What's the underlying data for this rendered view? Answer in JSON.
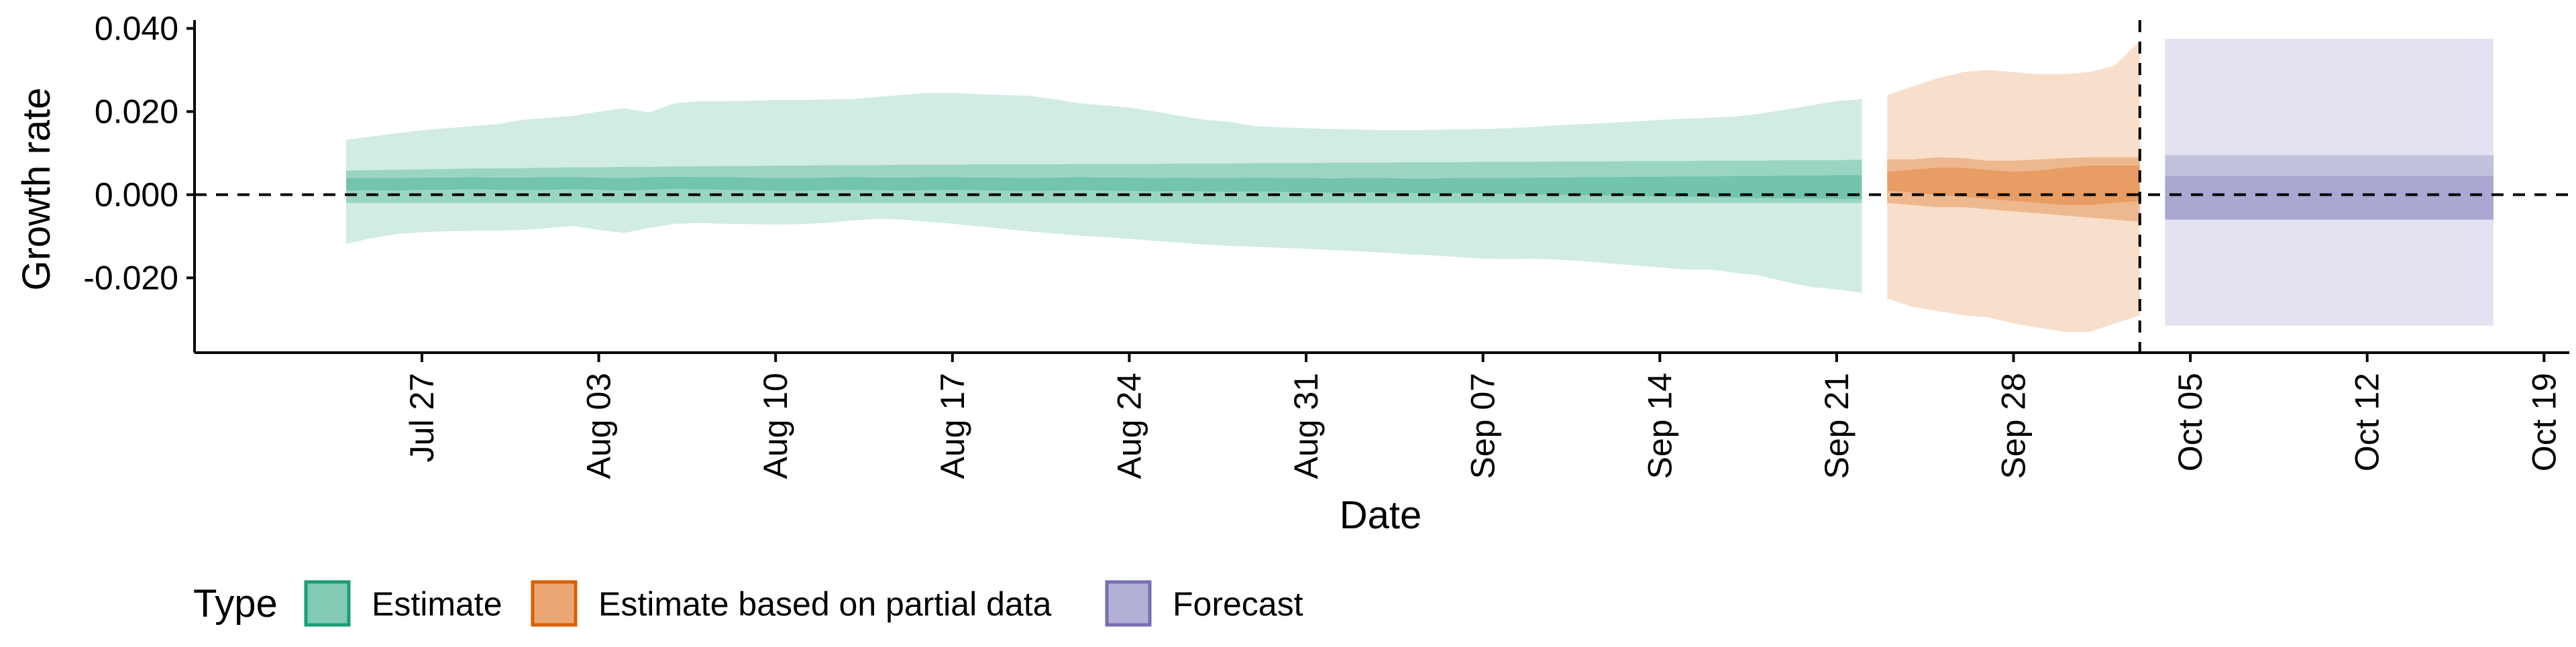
{
  "chart_data": {
    "type": "area",
    "title": "",
    "xlabel": "Date",
    "ylabel": "Growth rate",
    "ylim": [
      -0.038,
      0.042
    ],
    "xlim": [
      "2020-07-18",
      "2020-10-20"
    ],
    "y_ticks": [
      {
        "value": -0.02,
        "label": "-0.020"
      },
      {
        "value": 0.0,
        "label": "0.000"
      },
      {
        "value": 0.02,
        "label": "0.020"
      },
      {
        "value": 0.04,
        "label": "0.040"
      }
    ],
    "x_ticks": [
      {
        "date": "2020-07-27",
        "label": "Jul 27"
      },
      {
        "date": "2020-08-03",
        "label": "Aug 03"
      },
      {
        "date": "2020-08-10",
        "label": "Aug 10"
      },
      {
        "date": "2020-08-17",
        "label": "Aug 17"
      },
      {
        "date": "2020-08-24",
        "label": "Aug 24"
      },
      {
        "date": "2020-08-31",
        "label": "Aug 31"
      },
      {
        "date": "2020-09-07",
        "label": "Sep 07"
      },
      {
        "date": "2020-09-14",
        "label": "Sep 14"
      },
      {
        "date": "2020-09-21",
        "label": "Sep 21"
      },
      {
        "date": "2020-09-28",
        "label": "Sep 28"
      },
      {
        "date": "2020-10-05",
        "label": "Oct 05"
      },
      {
        "date": "2020-10-12",
        "label": "Oct 12"
      },
      {
        "date": "2020-10-19",
        "label": "Oct 19"
      }
    ],
    "reference_lines": {
      "horizontal_y": 0.0,
      "vertical_date": "2020-10-03"
    },
    "legend": {
      "title": "Type",
      "position": "bottom-left",
      "entries": [
        {
          "label": "Estimate",
          "color": "#1b9e77"
        },
        {
          "label": "Estimate based on partial data",
          "color": "#d95f02"
        },
        {
          "label": "Forecast",
          "color": "#7570b3"
        }
      ]
    },
    "grid": false,
    "series": [
      {
        "name": "Estimate",
        "color": "#1b9e77",
        "x": [
          "2020-07-24",
          "2020-07-25",
          "2020-07-26",
          "2020-07-27",
          "2020-07-28",
          "2020-07-29",
          "2020-07-30",
          "2020-07-31",
          "2020-08-01",
          "2020-08-02",
          "2020-08-03",
          "2020-08-04",
          "2020-08-05",
          "2020-08-06",
          "2020-08-07",
          "2020-08-08",
          "2020-08-09",
          "2020-08-10",
          "2020-08-11",
          "2020-08-12",
          "2020-08-13",
          "2020-08-14",
          "2020-08-15",
          "2020-08-16",
          "2020-08-17",
          "2020-08-18",
          "2020-08-19",
          "2020-08-20",
          "2020-08-21",
          "2020-08-22",
          "2020-08-23",
          "2020-08-24",
          "2020-08-25",
          "2020-08-26",
          "2020-08-27",
          "2020-08-28",
          "2020-08-29",
          "2020-08-30",
          "2020-08-31",
          "2020-09-01",
          "2020-09-02",
          "2020-09-03",
          "2020-09-04",
          "2020-09-05",
          "2020-09-06",
          "2020-09-07",
          "2020-09-08",
          "2020-09-09",
          "2020-09-10",
          "2020-09-11",
          "2020-09-12",
          "2020-09-13",
          "2020-09-14",
          "2020-09-15",
          "2020-09-16",
          "2020-09-17",
          "2020-09-18",
          "2020-09-19",
          "2020-09-20",
          "2020-09-21",
          "2020-09-22"
        ],
        "lower_90": [
          -0.0118,
          -0.0105,
          -0.0095,
          -0.009,
          -0.0088,
          -0.0087,
          -0.0086,
          -0.0085,
          -0.008,
          -0.0075,
          -0.0085,
          -0.0092,
          -0.008,
          -0.007,
          -0.0068,
          -0.007,
          -0.0071,
          -0.0072,
          -0.0071,
          -0.0068,
          -0.0062,
          -0.0058,
          -0.006,
          -0.0065,
          -0.007,
          -0.0076,
          -0.0082,
          -0.0088,
          -0.0093,
          -0.0098,
          -0.0102,
          -0.0106,
          -0.0111,
          -0.0115,
          -0.012,
          -0.0123,
          -0.0125,
          -0.0128,
          -0.013,
          -0.0133,
          -0.0136,
          -0.0139,
          -0.0143,
          -0.0146,
          -0.015,
          -0.0154,
          -0.0155,
          -0.0154,
          -0.0156,
          -0.016,
          -0.0165,
          -0.017,
          -0.0175,
          -0.018,
          -0.018,
          -0.0188,
          -0.0195,
          -0.021,
          -0.0222,
          -0.0228,
          -0.0236
        ],
        "upper_90": [
          0.0132,
          0.014,
          0.0148,
          0.0155,
          0.016,
          0.0165,
          0.017,
          0.018,
          0.0185,
          0.019,
          0.02,
          0.0208,
          0.0198,
          0.022,
          0.0225,
          0.0225,
          0.0226,
          0.0228,
          0.0228,
          0.0229,
          0.023,
          0.0235,
          0.024,
          0.0245,
          0.0245,
          0.0242,
          0.024,
          0.0238,
          0.023,
          0.022,
          0.0215,
          0.021,
          0.02,
          0.019,
          0.018,
          0.0175,
          0.0165,
          0.0162,
          0.016,
          0.0158,
          0.0157,
          0.0155,
          0.0155,
          0.0156,
          0.0157,
          0.0158,
          0.016,
          0.0163,
          0.0167,
          0.017,
          0.0173,
          0.0176,
          0.018,
          0.0183,
          0.0185,
          0.0188,
          0.0195,
          0.0205,
          0.0215,
          0.0225,
          0.023
        ],
        "lower_50": [
          -0.002,
          -0.002,
          -0.002,
          -0.002,
          -0.002,
          -0.002,
          -0.002,
          -0.002,
          -0.002,
          -0.002,
          -0.002,
          -0.002,
          -0.002,
          -0.002,
          -0.002,
          -0.002,
          -0.002,
          -0.002,
          -0.002,
          -0.002,
          -0.002,
          -0.002,
          -0.002,
          -0.002,
          -0.002,
          -0.002,
          -0.002,
          -0.002,
          -0.002,
          -0.002,
          -0.002,
          -0.002,
          -0.002,
          -0.002,
          -0.002,
          -0.002,
          -0.002,
          -0.002,
          -0.002,
          -0.002,
          -0.002,
          -0.002,
          -0.002,
          -0.002,
          -0.002,
          -0.002,
          -0.002,
          -0.002,
          -0.002,
          -0.002,
          -0.002,
          -0.002,
          -0.002,
          -0.002,
          -0.002,
          -0.002,
          -0.002,
          -0.002,
          -0.002,
          -0.002,
          -0.002
        ],
        "upper_50": [
          0.0058,
          0.0059,
          0.006,
          0.0061,
          0.0062,
          0.0063,
          0.0063,
          0.0064,
          0.0065,
          0.0066,
          0.0066,
          0.0067,
          0.0067,
          0.0068,
          0.0068,
          0.0069,
          0.0069,
          0.007,
          0.007,
          0.0071,
          0.0071,
          0.0071,
          0.0072,
          0.0072,
          0.0072,
          0.0073,
          0.0073,
          0.0073,
          0.0073,
          0.0074,
          0.0074,
          0.0074,
          0.0074,
          0.0075,
          0.0075,
          0.0075,
          0.0076,
          0.0076,
          0.0076,
          0.0077,
          0.0077,
          0.0077,
          0.0078,
          0.0078,
          0.0078,
          0.0079,
          0.0079,
          0.0079,
          0.008,
          0.008,
          0.008,
          0.0081,
          0.0081,
          0.0081,
          0.0082,
          0.0082,
          0.0082,
          0.0083,
          0.0083,
          0.0083,
          0.0084
        ],
        "lower_20": [
          0.001,
          0.0011,
          0.001,
          0.0012,
          0.0012,
          0.0013,
          0.0012,
          0.0011,
          0.0012,
          0.0013,
          0.0012,
          0.001,
          0.0012,
          0.0014,
          0.0013,
          0.0012,
          0.0011,
          0.001,
          0.0009,
          0.0011,
          0.0012,
          0.0011,
          0.001,
          0.0011,
          0.0012,
          0.0011,
          0.001,
          0.0009,
          0.001,
          0.0011,
          0.001,
          0.0009,
          0.0008,
          0.0009,
          0.0008,
          0.0007,
          0.0008,
          0.0007,
          0.0006,
          0.0005,
          0.0006,
          0.0005,
          0.0004,
          0.0003,
          0.0004,
          0.0003,
          0.0002,
          0.0001,
          0.0,
          -0.0001,
          -0.0002,
          -0.0003,
          -0.0004,
          -0.0005,
          -0.0006,
          -0.0007,
          -0.0008,
          -0.0009,
          -0.0009,
          -0.001,
          -0.001
        ],
        "upper_20": [
          0.004,
          0.004,
          0.004,
          0.0041,
          0.0041,
          0.0042,
          0.0041,
          0.0041,
          0.0042,
          0.0042,
          0.0041,
          0.004,
          0.0042,
          0.0043,
          0.0042,
          0.0042,
          0.0041,
          0.004,
          0.004,
          0.0041,
          0.0042,
          0.0041,
          0.0041,
          0.0042,
          0.0042,
          0.0041,
          0.0041,
          0.004,
          0.0041,
          0.0042,
          0.0041,
          0.0041,
          0.004,
          0.0041,
          0.004,
          0.004,
          0.0041,
          0.004,
          0.004,
          0.0039,
          0.004,
          0.004,
          0.0039,
          0.0039,
          0.004,
          0.004,
          0.004,
          0.0041,
          0.0041,
          0.0042,
          0.0042,
          0.0043,
          0.0043,
          0.0044,
          0.0044,
          0.0045,
          0.0045,
          0.0046,
          0.0046,
          0.0047,
          0.0047
        ]
      },
      {
        "name": "Estimate based on partial data",
        "color": "#d95f02",
        "x": [
          "2020-09-23",
          "2020-09-24",
          "2020-09-25",
          "2020-09-26",
          "2020-09-27",
          "2020-09-28",
          "2020-09-29",
          "2020-09-30",
          "2020-10-01",
          "2020-10-02",
          "2020-10-03"
        ],
        "lower_90": [
          -0.025,
          -0.027,
          -0.028,
          -0.029,
          -0.0295,
          -0.031,
          -0.032,
          -0.033,
          -0.033,
          -0.031,
          -0.029
        ],
        "upper_90": [
          0.024,
          0.026,
          0.028,
          0.0295,
          0.03,
          0.0295,
          0.029,
          0.029,
          0.0295,
          0.031,
          0.037
        ],
        "lower_50": [
          -0.002,
          -0.0025,
          -0.003,
          -0.003,
          -0.0035,
          -0.004,
          -0.0045,
          -0.005,
          -0.0055,
          -0.006,
          -0.0065
        ],
        "upper_50": [
          0.0085,
          0.0085,
          0.009,
          0.0088,
          0.0082,
          0.0082,
          0.0085,
          0.0088,
          0.009,
          0.009,
          0.009
        ],
        "lower_20": [
          0.001,
          0.0005,
          0.0,
          -0.0005,
          -0.001,
          -0.0015,
          -0.002,
          -0.0025,
          -0.0025,
          -0.002,
          -0.0015
        ],
        "upper_20": [
          0.0055,
          0.006,
          0.0065,
          0.0065,
          0.006,
          0.0055,
          0.0058,
          0.0065,
          0.007,
          0.007,
          0.007
        ]
      },
      {
        "name": "Forecast",
        "color": "#7570b3",
        "x": [
          "2020-10-04",
          "2020-10-17"
        ],
        "lower_90": [
          -0.0315,
          -0.0315
        ],
        "upper_90": [
          0.0375,
          0.0375
        ],
        "lower_50": [
          -0.006,
          -0.006
        ],
        "upper_50": [
          0.0095,
          0.0095
        ],
        "lower_20": [
          -0.006,
          -0.006
        ],
        "upper_20": [
          0.0045,
          0.0045
        ]
      }
    ]
  }
}
